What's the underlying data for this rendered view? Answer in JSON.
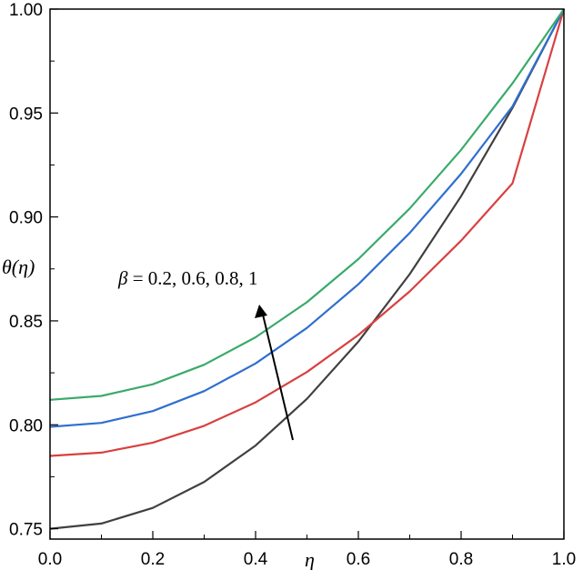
{
  "chart_data": {
    "type": "line",
    "title": "",
    "xlabel": "η",
    "ylabel": "θ(η)",
    "xlim": [
      0,
      1
    ],
    "ylim": [
      0.745,
      1.0
    ],
    "x_ticks": [
      "0.0",
      "0.2",
      "0.4",
      "0.6",
      "0.8",
      "1.0"
    ],
    "y_ticks": [
      "0.75",
      "0.80",
      "0.85",
      "0.90",
      "0.95",
      "1.00"
    ],
    "grid": false,
    "annotation": {
      "text": "β = 0.2, 0.6, 0.8, 1",
      "symbol": "β",
      "rest": " = 0.2, 0.6, 0.8, 1"
    },
    "x": [
      0.0,
      0.1,
      0.2,
      0.3,
      0.4,
      0.5,
      0.6,
      0.7,
      0.8,
      0.9,
      1.0
    ],
    "series": [
      {
        "color": "#404040",
        "values": [
          0.75,
          0.7525,
          0.76,
          0.7725,
          0.79,
          0.8125,
          0.84,
          0.8725,
          0.91,
          0.9525,
          1.0
        ]
      },
      {
        "color": "#d94040",
        "values": [
          0.785,
          0.7866,
          0.7914,
          0.7995,
          0.8108,
          0.8254,
          0.8432,
          0.8642,
          0.8886,
          0.9162,
          1.0
        ]
      },
      {
        "color": "#2f6fd0",
        "values": [
          0.799,
          0.8009,
          0.8066,
          0.8162,
          0.8295,
          0.8466,
          0.8676,
          0.8923,
          0.9208,
          0.9532,
          1.0
        ]
      },
      {
        "color": "#3aaa6a",
        "values": [
          0.812,
          0.8139,
          0.8195,
          0.8289,
          0.8421,
          0.859,
          0.8797,
          0.9041,
          0.9323,
          0.9643,
          1.0
        ]
      }
    ]
  }
}
